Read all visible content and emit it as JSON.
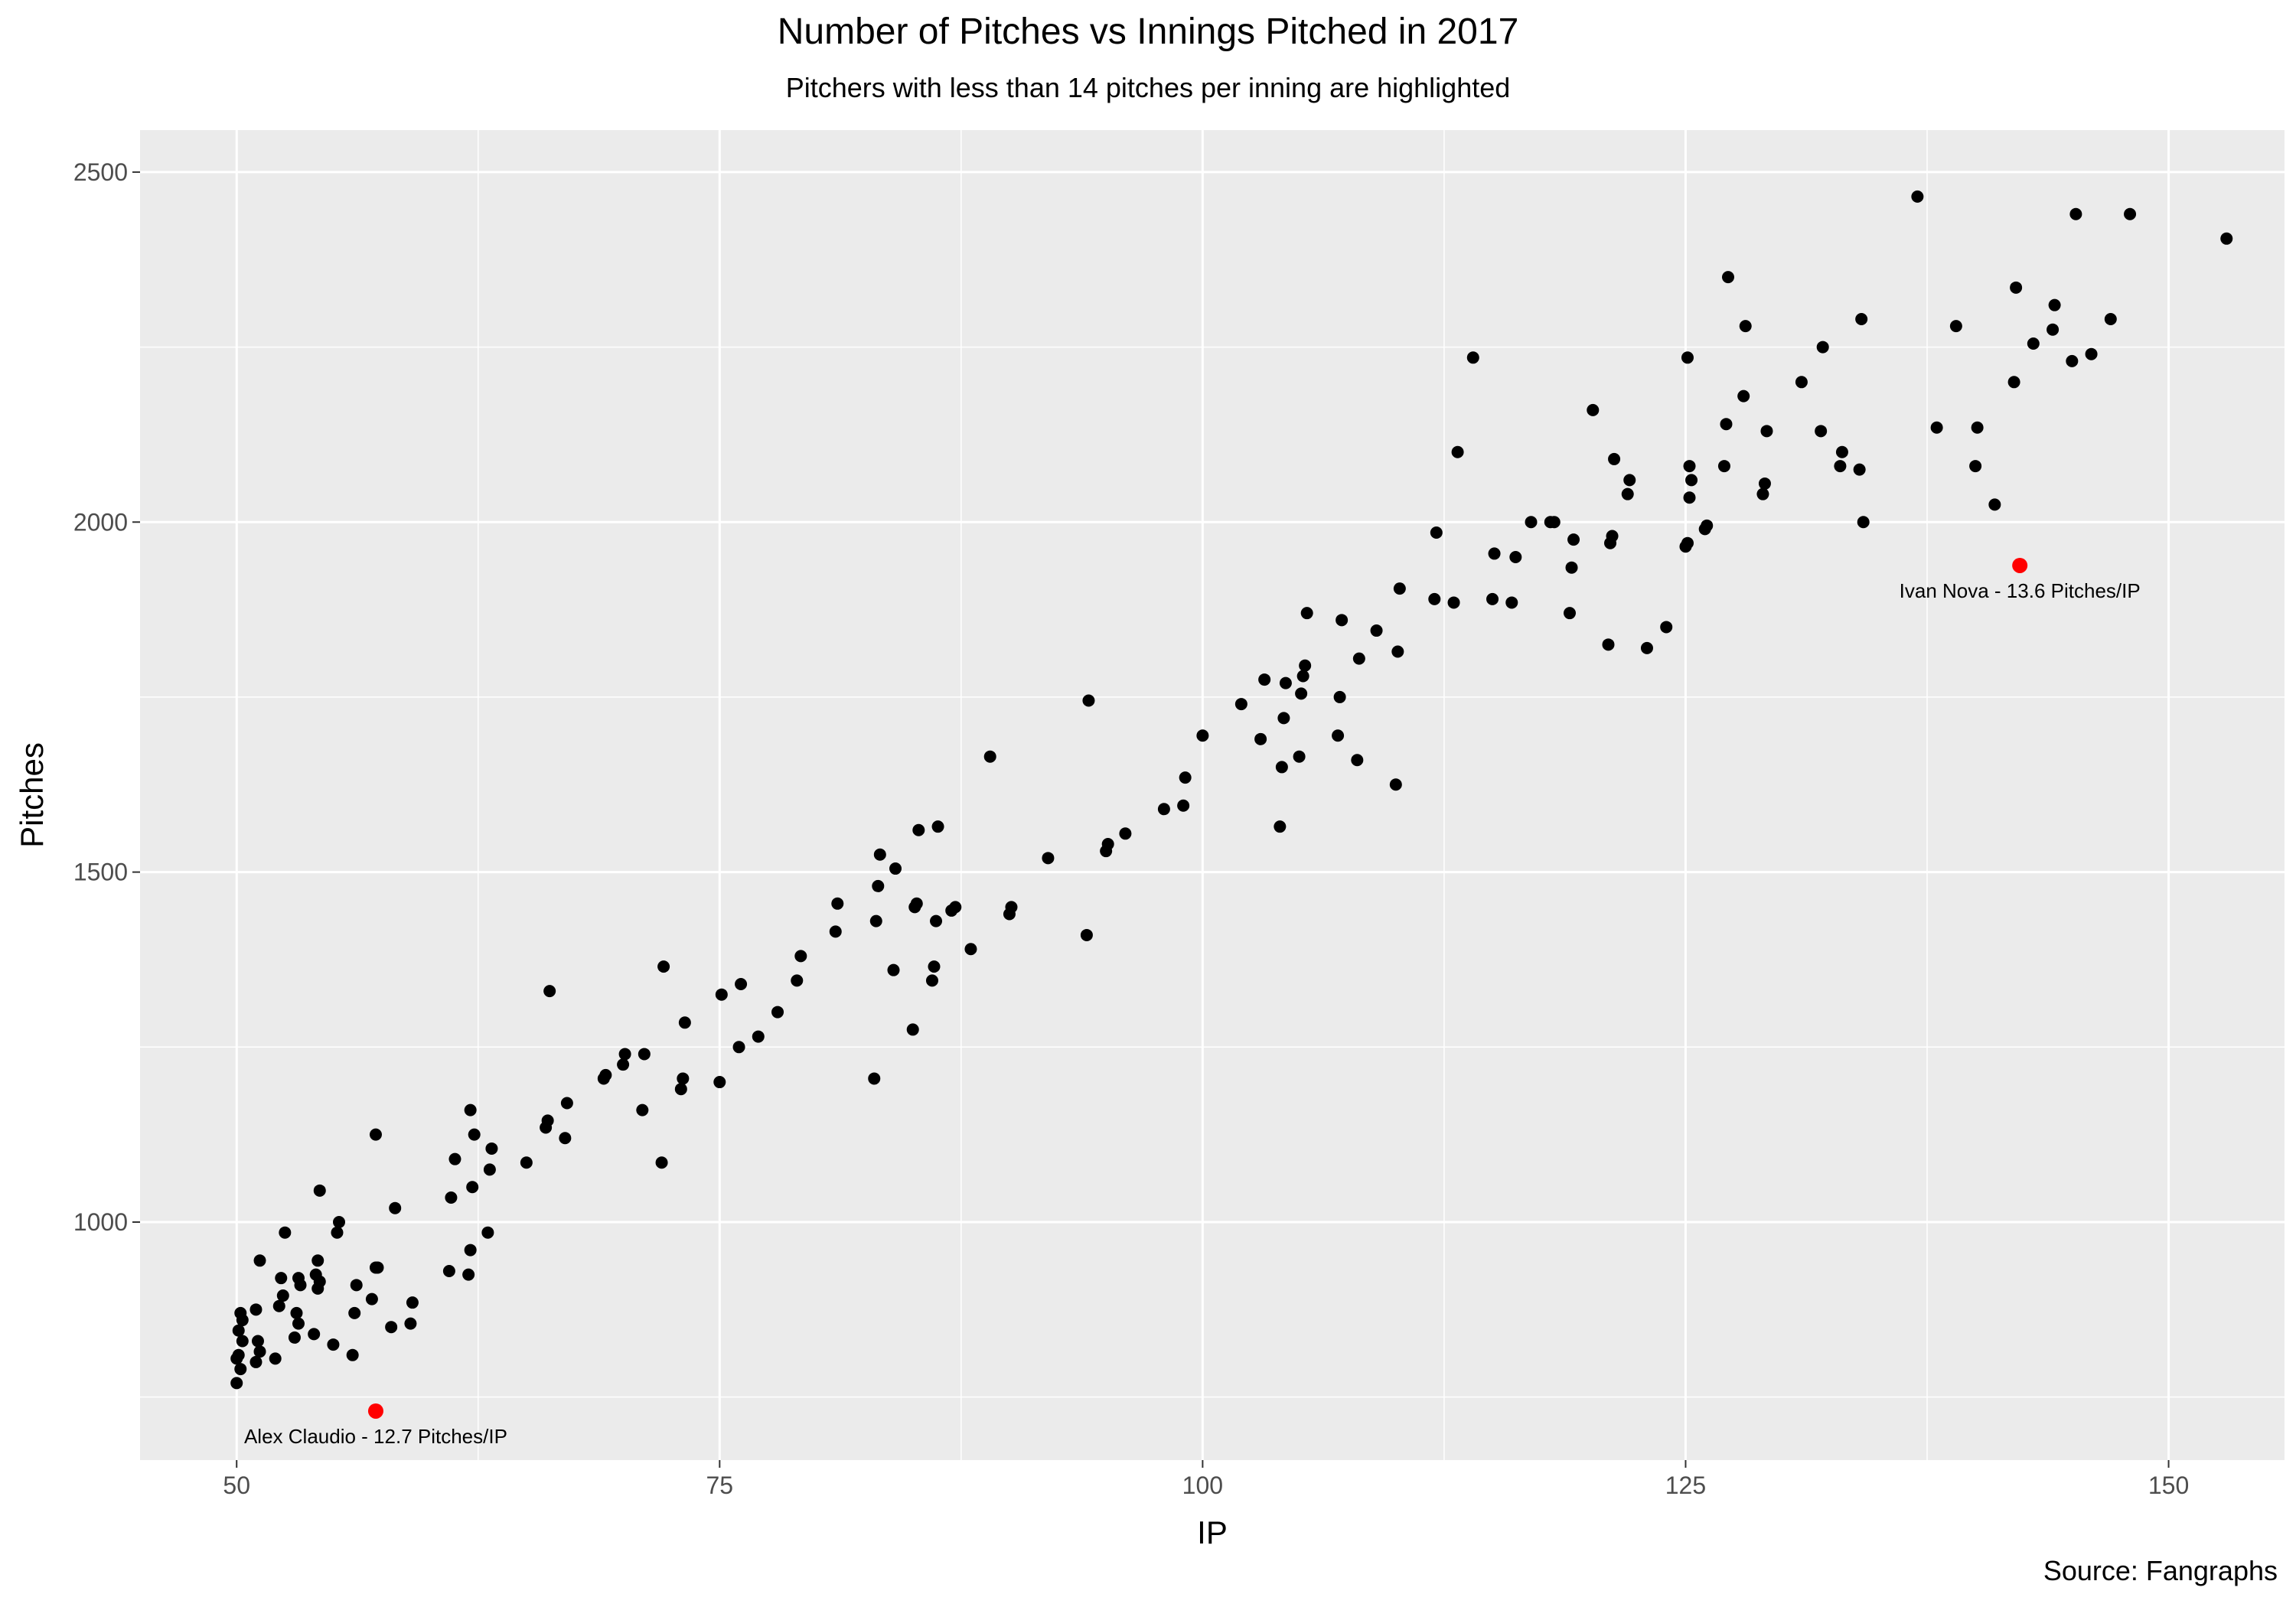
{
  "chart_data": {
    "type": "scatter",
    "title": "Number of Pitches vs Innings Pitched in 2017",
    "subtitle": "Pitchers with less than 14 pitches per inning are highlighted",
    "caption": "Source: Fangraphs",
    "xlabel": "IP",
    "ylabel": "Pitches",
    "xlim": [
      45,
      156
    ],
    "ylim": [
      660,
      2560
    ],
    "xticks": [
      50,
      75,
      100,
      125,
      150
    ],
    "yticks": [
      1000,
      1500,
      2000,
      2500
    ],
    "grid": true,
    "background": "#ebebeb",
    "grid_color": "#ffffff",
    "point_color": "#000000",
    "highlight_color": "#ff0000",
    "highlighted": [
      {
        "x": 57.2,
        "y": 730,
        "label": "Alex Claudio - 12.7 Pitches/IP"
      },
      {
        "x": 142.3,
        "y": 1938,
        "label": "Ivan Nova - 13.6 Pitches/IP"
      }
    ],
    "points": [
      [
        50,
        770
      ],
      [
        50.2,
        790
      ],
      [
        50,
        805
      ],
      [
        50.1,
        810
      ],
      [
        50.3,
        830
      ],
      [
        50.1,
        845
      ],
      [
        50.3,
        860
      ],
      [
        50.2,
        870
      ],
      [
        51,
        800
      ],
      [
        51.2,
        815
      ],
      [
        51.1,
        830
      ],
      [
        51,
        875
      ],
      [
        51.2,
        945
      ],
      [
        52,
        805
      ],
      [
        52.2,
        880
      ],
      [
        52.4,
        895
      ],
      [
        52.3,
        920
      ],
      [
        52.5,
        985
      ],
      [
        53,
        835
      ],
      [
        53.2,
        855
      ],
      [
        53.1,
        870
      ],
      [
        53.3,
        910
      ],
      [
        53.2,
        920
      ],
      [
        54,
        840
      ],
      [
        54.2,
        905
      ],
      [
        54.3,
        915
      ],
      [
        54.1,
        925
      ],
      [
        54.2,
        945
      ],
      [
        54.3,
        1045
      ],
      [
        55,
        825
      ],
      [
        55.2,
        985
      ],
      [
        55.3,
        1000
      ],
      [
        56,
        810
      ],
      [
        56.1,
        870
      ],
      [
        56.2,
        910
      ],
      [
        57,
        890
      ],
      [
        57.2,
        935
      ],
      [
        57.3,
        935
      ],
      [
        57.2,
        1125
      ],
      [
        58,
        850
      ],
      [
        58.2,
        1020
      ],
      [
        59,
        855
      ],
      [
        59.1,
        885
      ],
      [
        61,
        930
      ],
      [
        61.1,
        1035
      ],
      [
        61.3,
        1090
      ],
      [
        62,
        925
      ],
      [
        62.1,
        960
      ],
      [
        62.2,
        1050
      ],
      [
        62.3,
        1125
      ],
      [
        62.1,
        1160
      ],
      [
        63,
        985
      ],
      [
        63.1,
        1075
      ],
      [
        63.2,
        1105
      ],
      [
        65,
        1085
      ],
      [
        66,
        1135
      ],
      [
        66.1,
        1145
      ],
      [
        66.2,
        1330
      ],
      [
        67,
        1120
      ],
      [
        67.1,
        1170
      ],
      [
        69,
        1205
      ],
      [
        69.1,
        1210
      ],
      [
        70,
        1225
      ],
      [
        70.1,
        1240
      ],
      [
        71,
        1160
      ],
      [
        71.1,
        1240
      ],
      [
        72,
        1085
      ],
      [
        72.1,
        1365
      ],
      [
        73,
        1190
      ],
      [
        73.1,
        1205
      ],
      [
        73.2,
        1285
      ],
      [
        75,
        1200
      ],
      [
        75.1,
        1325
      ],
      [
        76,
        1250
      ],
      [
        76.1,
        1340
      ],
      [
        77,
        1265
      ],
      [
        78,
        1300
      ],
      [
        79,
        1345
      ],
      [
        79.2,
        1380
      ],
      [
        81,
        1415
      ],
      [
        81.1,
        1455
      ],
      [
        83,
        1205
      ],
      [
        83.1,
        1430
      ],
      [
        83.2,
        1480
      ],
      [
        83.3,
        1525
      ],
      [
        84,
        1360
      ],
      [
        84.1,
        1505
      ],
      [
        85,
        1275
      ],
      [
        85.1,
        1450
      ],
      [
        85.2,
        1455
      ],
      [
        85.3,
        1560
      ],
      [
        86,
        1345
      ],
      [
        86.1,
        1365
      ],
      [
        86.2,
        1430
      ],
      [
        86.3,
        1565
      ],
      [
        87,
        1445
      ],
      [
        87.2,
        1450
      ],
      [
        88,
        1390
      ],
      [
        89,
        1665
      ],
      [
        90,
        1440
      ],
      [
        90.1,
        1450
      ],
      [
        92,
        1520
      ],
      [
        94,
        1410
      ],
      [
        94.1,
        1745
      ],
      [
        95,
        1530
      ],
      [
        95.1,
        1540
      ],
      [
        96,
        1555
      ],
      [
        98,
        1590
      ],
      [
        99,
        1595
      ],
      [
        99.1,
        1635
      ],
      [
        100,
        1695
      ],
      [
        102,
        1740
      ],
      [
        103,
        1690
      ],
      [
        103.2,
        1775
      ],
      [
        104,
        1565
      ],
      [
        104.1,
        1650
      ],
      [
        104.2,
        1720
      ],
      [
        104.3,
        1770
      ],
      [
        105,
        1665
      ],
      [
        105.1,
        1755
      ],
      [
        105.2,
        1780
      ],
      [
        105.3,
        1795
      ],
      [
        105.4,
        1870
      ],
      [
        107,
        1695
      ],
      [
        107.1,
        1750
      ],
      [
        107.2,
        1860
      ],
      [
        108,
        1660
      ],
      [
        108.1,
        1805
      ],
      [
        109,
        1845
      ],
      [
        110,
        1625
      ],
      [
        110.1,
        1815
      ],
      [
        110.2,
        1905
      ],
      [
        112,
        1890
      ],
      [
        112.1,
        1985
      ],
      [
        113,
        1885
      ],
      [
        113.2,
        2100
      ],
      [
        114,
        2235
      ],
      [
        115,
        1890
      ],
      [
        115.1,
        1955
      ],
      [
        116,
        1885
      ],
      [
        116.2,
        1950
      ],
      [
        117,
        2000
      ],
      [
        118,
        2000
      ],
      [
        118.2,
        2000
      ],
      [
        119,
        1870
      ],
      [
        119.1,
        1935
      ],
      [
        119.2,
        1975
      ],
      [
        120.2,
        2160
      ],
      [
        121,
        1825
      ],
      [
        121.1,
        1970
      ],
      [
        121.2,
        1980
      ],
      [
        121.3,
        2090
      ],
      [
        122,
        2040
      ],
      [
        122.1,
        2060
      ],
      [
        123,
        1820
      ],
      [
        124,
        1850
      ],
      [
        125,
        1965
      ],
      [
        125.1,
        1970
      ],
      [
        125.2,
        2035
      ],
      [
        125.3,
        2060
      ],
      [
        125.2,
        2080
      ],
      [
        125.1,
        2235
      ],
      [
        126,
        1990
      ],
      [
        126.1,
        1995
      ],
      [
        127,
        2080
      ],
      [
        127.1,
        2140
      ],
      [
        127.2,
        2350
      ],
      [
        128,
        2180
      ],
      [
        128.1,
        2280
      ],
      [
        129,
        2040
      ],
      [
        129.1,
        2055
      ],
      [
        129.2,
        2130
      ],
      [
        131,
        2200
      ],
      [
        132,
        2130
      ],
      [
        132.1,
        2250
      ],
      [
        133,
        2080
      ],
      [
        133.1,
        2100
      ],
      [
        134,
        2075
      ],
      [
        134.1,
        2290
      ],
      [
        134.2,
        2000
      ],
      [
        137,
        2465
      ],
      [
        138,
        2135
      ],
      [
        139,
        2280
      ],
      [
        140,
        2080
      ],
      [
        140.1,
        2135
      ],
      [
        141,
        2025
      ],
      [
        142,
        2200
      ],
      [
        142.1,
        2335
      ],
      [
        143,
        2255
      ],
      [
        144,
        2275
      ],
      [
        144.1,
        2310
      ],
      [
        145,
        2230
      ],
      [
        145.2,
        2440
      ],
      [
        146,
        2240
      ],
      [
        147,
        2290
      ],
      [
        148,
        2440
      ],
      [
        153,
        2405
      ]
    ]
  }
}
